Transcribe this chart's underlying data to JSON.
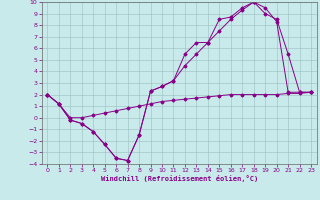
{
  "xlabel": "Windchill (Refroidissement éolien,°C)",
  "background_color": "#c8eaea",
  "line_color": "#880088",
  "xlim": [
    -0.5,
    23.5
  ],
  "ylim": [
    -4,
    10
  ],
  "xticks": [
    0,
    1,
    2,
    3,
    4,
    5,
    6,
    7,
    8,
    9,
    10,
    11,
    12,
    13,
    14,
    15,
    16,
    17,
    18,
    19,
    20,
    21,
    22,
    23
  ],
  "yticks": [
    -4,
    -3,
    -2,
    -1,
    0,
    1,
    2,
    3,
    4,
    5,
    6,
    7,
    8,
    9,
    10
  ],
  "line1_x": [
    0,
    1,
    2,
    3,
    4,
    5,
    6,
    7,
    8,
    9,
    10,
    11,
    12,
    13,
    14,
    15,
    16,
    17,
    18,
    19,
    20,
    21,
    22,
    23
  ],
  "line1_y": [
    2.0,
    1.2,
    -0.2,
    -0.5,
    -1.2,
    -2.3,
    -3.5,
    -3.7,
    -1.5,
    2.3,
    2.7,
    3.2,
    4.5,
    5.5,
    6.5,
    7.5,
    8.5,
    9.3,
    10.0,
    9.5,
    8.3,
    2.2,
    2.2,
    2.2
  ],
  "line2_x": [
    0,
    1,
    2,
    3,
    4,
    5,
    6,
    7,
    8,
    9,
    10,
    11,
    12,
    13,
    14,
    15,
    16,
    17,
    18,
    19,
    20,
    21,
    22,
    23
  ],
  "line2_y": [
    2.0,
    1.2,
    -0.2,
    -0.5,
    -1.2,
    -2.3,
    -3.5,
    -3.7,
    -1.5,
    2.3,
    2.7,
    3.2,
    5.5,
    6.5,
    6.5,
    8.5,
    8.7,
    9.5,
    10.0,
    9.0,
    8.5,
    5.5,
    2.2,
    2.2
  ],
  "line3_x": [
    0,
    1,
    2,
    3,
    4,
    5,
    6,
    7,
    8,
    9,
    10,
    11,
    12,
    13,
    14,
    15,
    16,
    17,
    18,
    19,
    20,
    21,
    22,
    23
  ],
  "line3_y": [
    2.0,
    1.2,
    0.0,
    0.0,
    0.2,
    0.4,
    0.6,
    0.8,
    1.0,
    1.2,
    1.4,
    1.5,
    1.6,
    1.7,
    1.8,
    1.9,
    2.0,
    2.0,
    2.0,
    2.0,
    2.0,
    2.1,
    2.1,
    2.2
  ]
}
